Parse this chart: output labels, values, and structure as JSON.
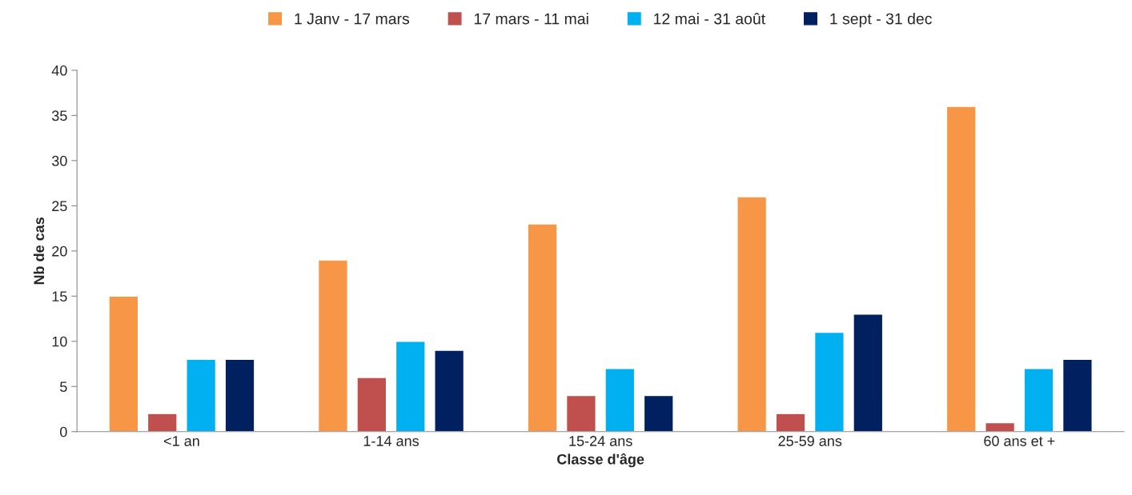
{
  "chart_data": {
    "type": "bar",
    "xlabel": "Classe d'âge",
    "ylabel": "Nb de cas",
    "categories": [
      "<1 an",
      "1-14 ans",
      "15-24 ans",
      "25-59 ans",
      "60 ans et +"
    ],
    "series": [
      {
        "name": "1 Janv - 17 mars",
        "color": "#f79646",
        "values": [
          15,
          19,
          23,
          26,
          36
        ]
      },
      {
        "name": "17 mars - 11 mai",
        "color": "#c0504d",
        "values": [
          2,
          6,
          4,
          2,
          1
        ]
      },
      {
        "name": "12 mai - 31 août",
        "color": "#00b0f0",
        "values": [
          8,
          10,
          7,
          11,
          7
        ]
      },
      {
        "name": "1 sept - 31 dec",
        "color": "#002060",
        "values": [
          8,
          9,
          4,
          13,
          8
        ]
      }
    ],
    "ylim": [
      0,
      40
    ],
    "yticks": [
      0,
      5,
      10,
      15,
      20,
      25,
      30,
      35,
      40
    ],
    "grid": false,
    "legend": "top"
  }
}
